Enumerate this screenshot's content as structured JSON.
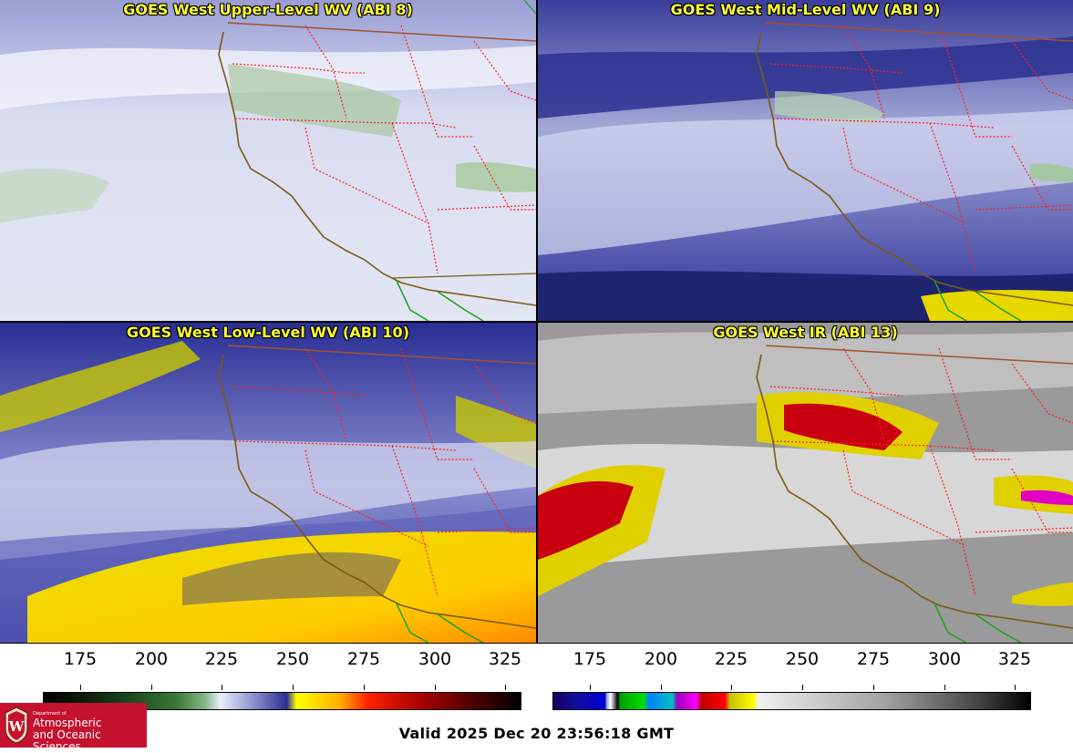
{
  "panels": {
    "upper": {
      "title": "GOES West Upper-Level WV (ABI 8)"
    },
    "mid": {
      "title": "GOES West Mid-Level WV (ABI 9)"
    },
    "low": {
      "title": "GOES West Low-Level WV (ABI 10)"
    },
    "ir": {
      "title": "GOES West IR (ABI 13)"
    }
  },
  "colorbars": {
    "wv_ticks": [
      "175",
      "200",
      "225",
      "250",
      "275",
      "300",
      "325"
    ],
    "ir_ticks": [
      "175",
      "200",
      "225",
      "250",
      "275",
      "300",
      "325"
    ]
  },
  "colors": {
    "title_text": "#ffff33",
    "state_border": "#ff2020",
    "coastline": "#7a5a14",
    "mexico_border": "#1aa31a",
    "logo_bg": "#c4122f"
  },
  "logo": {
    "line1": "Department of",
    "line2": "Atmospheric",
    "line3": "and Oceanic Sciences"
  },
  "footer": {
    "valid": "Valid 2025 Dec 20 23:56:18 GMT"
  }
}
